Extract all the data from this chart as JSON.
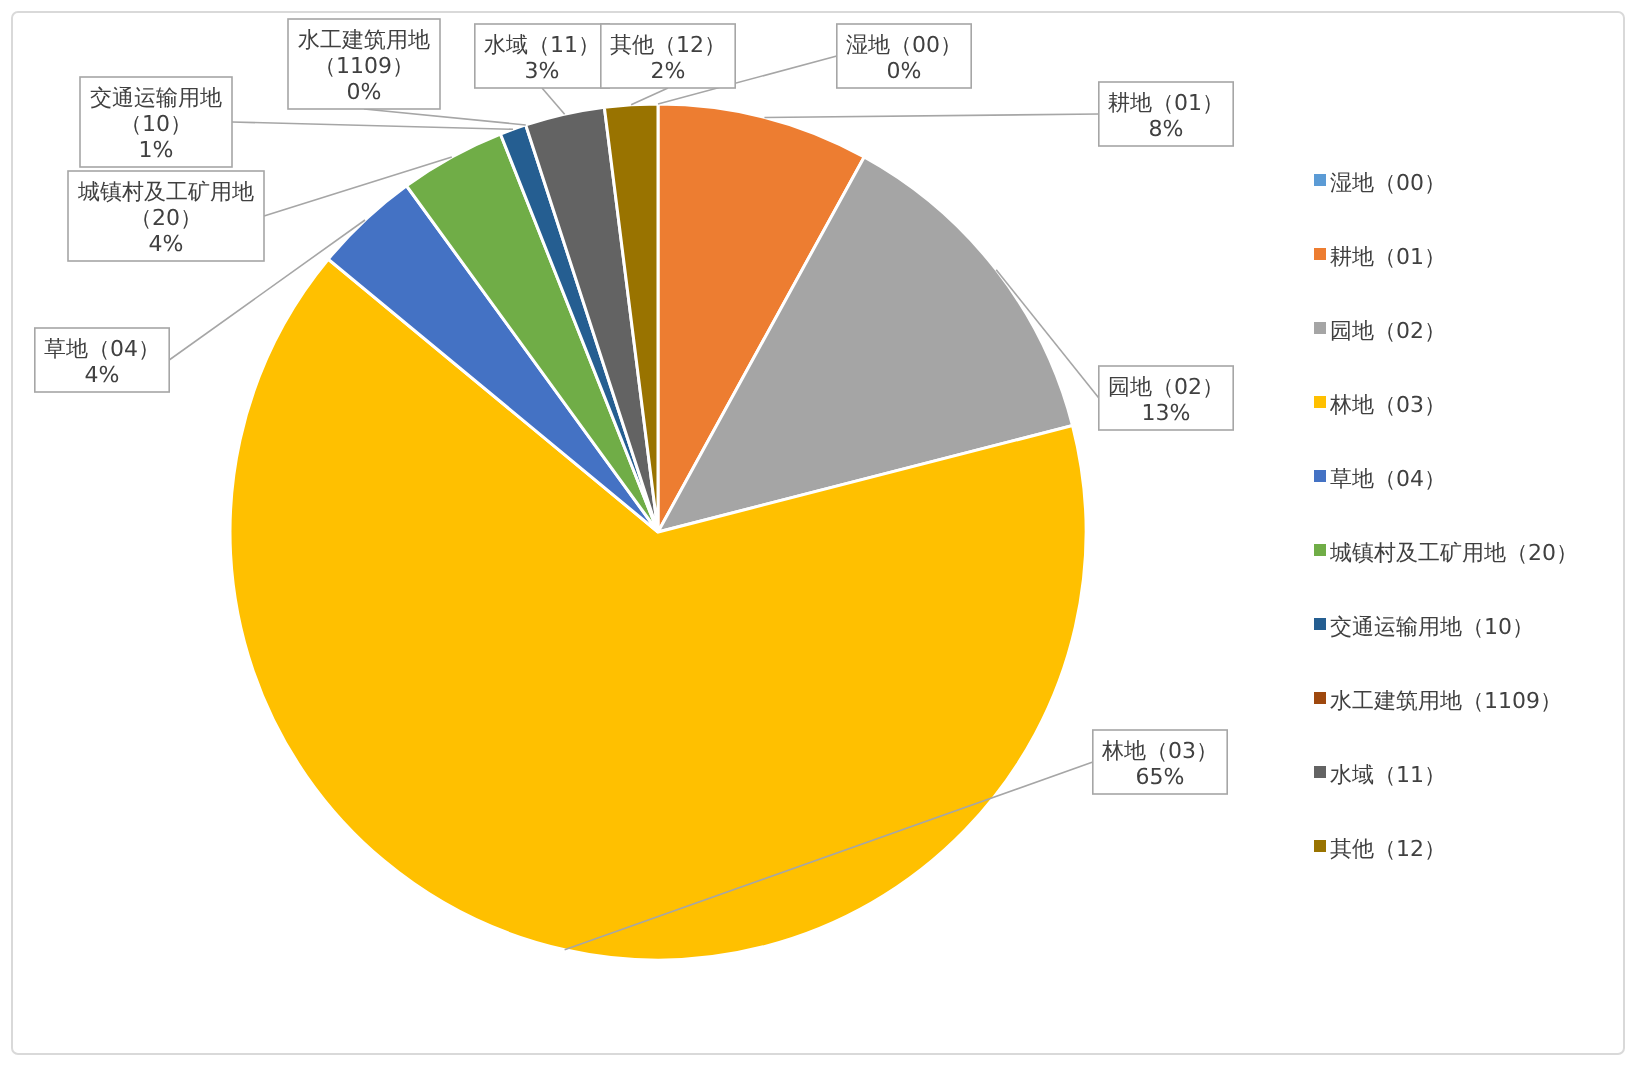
{
  "chart_data": {
    "type": "pie",
    "categories": [
      "湿地（00）",
      "耕地（01）",
      "园地（02）",
      "林地（03）",
      "草地（04）",
      "城镇村及工矿用地（20）",
      "交通运输用地（10）",
      "水工建筑用地（1109）",
      "水域（11）",
      "其他（12）"
    ],
    "values": [
      0,
      8,
      13,
      65,
      4,
      4,
      1,
      0,
      3,
      2
    ],
    "colors": [
      "#5b9bd5",
      "#ed7d31",
      "#a5a5a5",
      "#ffc000",
      "#4472c4",
      "#70ad47",
      "#255e91",
      "#9e480e",
      "#636363",
      "#997300"
    ],
    "value_labels": [
      "0%",
      "8%",
      "13%",
      "65%",
      "4%",
      "4%",
      "1%",
      "0%",
      "3%",
      "2%"
    ],
    "legend": "right"
  }
}
